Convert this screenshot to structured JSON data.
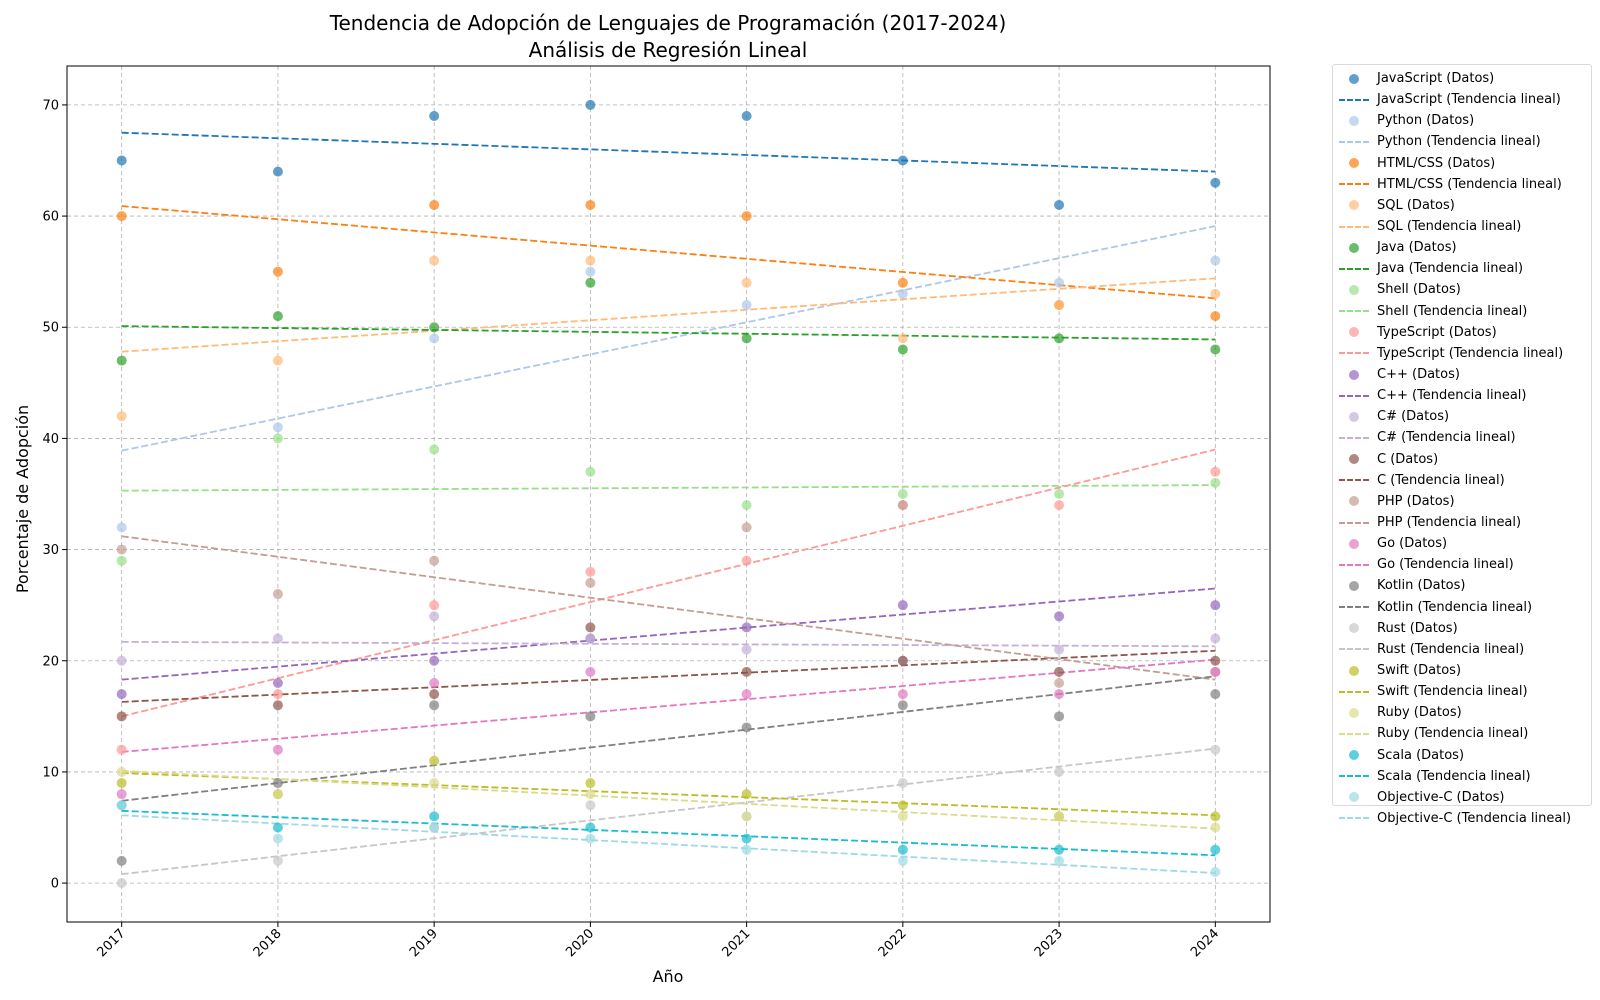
{
  "chart_data": {
    "type": "scatter",
    "title": "Tendencia de Adopción de Lenguajes de Programación (2017-2024)",
    "subtitle": "Análisis de Regresión Lineal",
    "xlabel": "Año",
    "ylabel": "Porcentaje de Adopción",
    "x": [
      2017,
      2018,
      2019,
      2020,
      2021,
      2022,
      2023,
      2024
    ],
    "xlim": [
      2016.65,
      2024.35
    ],
    "ylim": [
      -3.5,
      73.5
    ],
    "yticks": [
      0,
      10,
      20,
      30,
      40,
      50,
      60,
      70
    ],
    "grid": true,
    "legend_position": "outside-right",
    "data_suffix": " (Datos)",
    "trend_suffix": " (Tendencia lineal)",
    "series": [
      {
        "name": "JavaScript",
        "color": "#1f77b4",
        "values": [
          65,
          64,
          69,
          70,
          69,
          65,
          61,
          63
        ],
        "trend": [
          67.5,
          64.0
        ]
      },
      {
        "name": "Python",
        "color": "#aec7e8",
        "values": [
          32,
          41,
          49,
          55,
          52,
          53,
          54,
          56
        ],
        "trend": [
          38.9,
          59.1
        ]
      },
      {
        "name": "HTML/CSS",
        "color": "#ff7f0e",
        "values": [
          60,
          55,
          61,
          61,
          60,
          54,
          52,
          51
        ],
        "trend": [
          60.9,
          52.6
        ]
      },
      {
        "name": "SQL",
        "color": "#ffbb78",
        "values": [
          42,
          47,
          56,
          56,
          54,
          49,
          52,
          53
        ],
        "trend": [
          47.8,
          54.4
        ]
      },
      {
        "name": "Java",
        "color": "#2ca02c",
        "values": [
          47,
          51,
          50,
          54,
          49,
          48,
          49,
          48
        ],
        "trend": [
          50.1,
          48.9
        ]
      },
      {
        "name": "Shell",
        "color": "#98df8a",
        "values": [
          29,
          40,
          39,
          37,
          34,
          35,
          35,
          36
        ],
        "trend": [
          35.3,
          35.8
        ]
      },
      {
        "name": "TypeScript",
        "color": "#ff9896",
        "values": [
          12,
          17,
          25,
          28,
          29,
          34,
          34,
          37
        ],
        "trend": [
          15.0,
          39.0
        ]
      },
      {
        "name": "C++",
        "color": "#9467bd",
        "values": [
          17,
          18,
          20,
          22,
          23,
          25,
          24,
          25
        ],
        "trend": [
          18.3,
          26.5
        ]
      },
      {
        "name": "C#",
        "color": "#c5b0d5",
        "values": [
          20,
          22,
          24,
          22,
          21,
          20,
          21,
          22
        ],
        "trend": [
          21.7,
          21.3
        ]
      },
      {
        "name": "C",
        "color": "#8c564b",
        "values": [
          15,
          16,
          17,
          23,
          19,
          20,
          19,
          20
        ],
        "trend": [
          16.3,
          20.9
        ]
      },
      {
        "name": "PHP",
        "color": "#c49c94",
        "values": [
          30,
          26,
          29,
          27,
          32,
          34,
          18,
          19
        ],
        "trend": [
          31.2,
          18.3
        ]
      },
      {
        "name": "Go",
        "color": "#e377c2",
        "values": [
          8,
          12,
          18,
          19,
          17,
          17,
          17,
          19
        ],
        "trend": [
          11.8,
          20.1
        ]
      },
      {
        "name": "Kotlin",
        "color": "#7f7f7f",
        "values": [
          2,
          9,
          16,
          15,
          14,
          16,
          15,
          17
        ],
        "trend": [
          7.4,
          18.6
        ]
      },
      {
        "name": "Rust",
        "color": "#c7c7c7",
        "values": [
          0,
          2,
          5,
          7,
          6,
          9,
          10,
          12
        ],
        "trend": [
          0.8,
          12.1
        ]
      },
      {
        "name": "Swift",
        "color": "#bcbd22",
        "values": [
          9,
          8,
          11,
          9,
          8,
          7,
          6,
          6
        ],
        "trend": [
          9.9,
          6.1
        ]
      },
      {
        "name": "Ruby",
        "color": "#dbdb8d",
        "values": [
          10,
          8,
          9,
          8,
          6,
          6,
          6,
          5
        ],
        "trend": [
          10.1,
          4.9
        ]
      },
      {
        "name": "Scala",
        "color": "#17becf",
        "values": [
          7,
          5,
          6,
          5,
          4,
          3,
          3,
          3
        ],
        "trend": [
          6.5,
          2.5
        ]
      },
      {
        "name": "Objective-C",
        "color": "#9edae5",
        "values": [
          7,
          4,
          5,
          4,
          3,
          2,
          2,
          1
        ],
        "trend": [
          6.1,
          0.9
        ]
      }
    ]
  }
}
